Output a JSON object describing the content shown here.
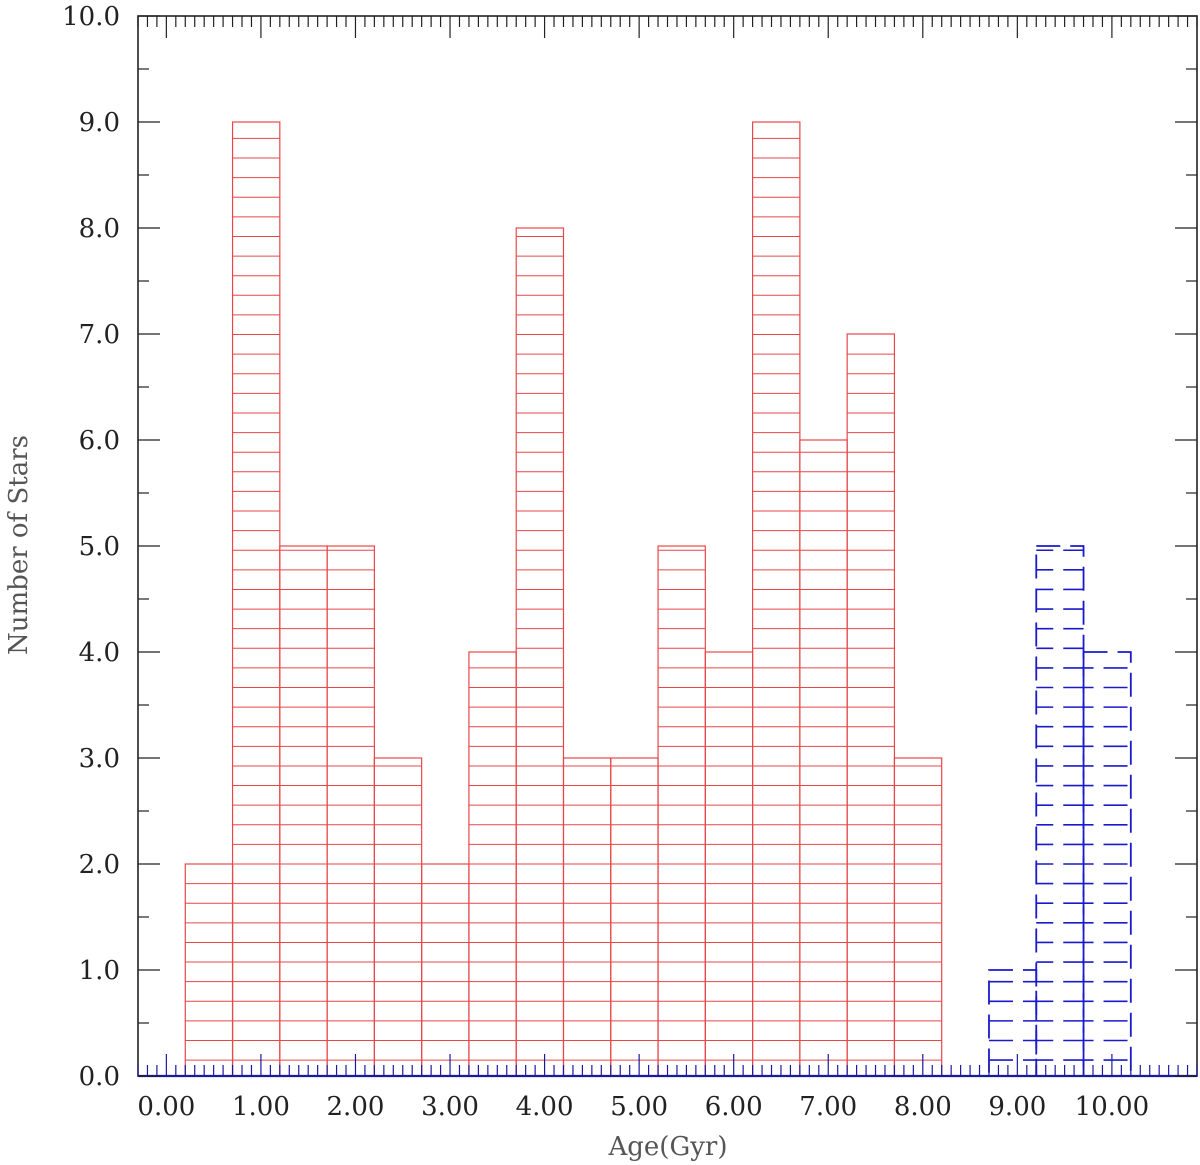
{
  "chart_data": {
    "type": "bar",
    "subtype": "step-histogram",
    "title": "",
    "xlabel": "Age(Gyr)",
    "ylabel": "Number of Stars",
    "xlim": [
      -0.3,
      10.9
    ],
    "ylim": [
      0,
      10
    ],
    "x_ticks": [
      0,
      1,
      2,
      3,
      4,
      5,
      6,
      7,
      8,
      9,
      10
    ],
    "x_tick_labels": [
      "0.00",
      "1.00",
      "2.00",
      "3.00",
      "4.00",
      "5.00",
      "6.00",
      "7.00",
      "8.00",
      "9.00",
      "10.00"
    ],
    "y_ticks": [
      0,
      1,
      2,
      3,
      4,
      5,
      6,
      7,
      8,
      9,
      10
    ],
    "y_tick_labels": [
      "0.0",
      "1.0",
      "2.0",
      "3.0",
      "4.0",
      "5.0",
      "6.0",
      "7.0",
      "8.0",
      "9.0",
      "10.0"
    ],
    "grid": false,
    "legend": "none",
    "series": [
      {
        "color": "#e8474a",
        "hatch": "horizontal-solid",
        "bin_edges": [
          0.2,
          0.7,
          1.2,
          1.7,
          2.2,
          2.7,
          3.2,
          3.7,
          4.2,
          4.7,
          5.2,
          5.7,
          6.2,
          6.7,
          7.2,
          7.7,
          8.2
        ],
        "values": [
          2,
          9,
          5,
          5,
          3,
          2,
          4,
          8,
          3,
          3,
          5,
          4,
          9,
          6,
          7,
          3
        ]
      },
      {
        "color": "#1a1acc",
        "hatch": "horizontal-dashed",
        "bin_edges": [
          8.7,
          9.2,
          9.7,
          10.2
        ],
        "values": [
          1,
          5,
          4
        ]
      }
    ]
  }
}
